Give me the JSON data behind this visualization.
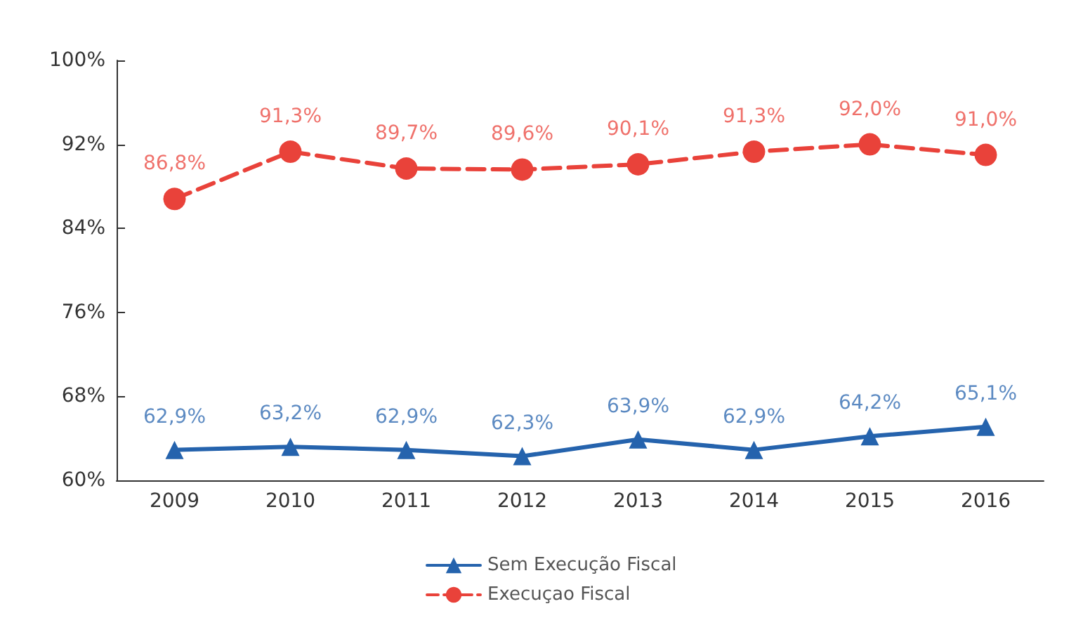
{
  "chart_data": {
    "type": "line",
    "categories": [
      "2009",
      "2010",
      "2011",
      "2012",
      "2013",
      "2014",
      "2015",
      "2016"
    ],
    "series": [
      {
        "name": "Sem Execução Fiscal",
        "color": "#2563ad",
        "marker": "triangle",
        "line_style": "solid",
        "values": [
          62.9,
          63.2,
          62.9,
          62.3,
          63.9,
          62.9,
          64.2,
          65.1
        ],
        "value_labels": [
          "62,9%",
          "63,2%",
          "62,9%",
          "62,3%",
          "63,9%",
          "62,9%",
          "64,2%",
          "65,1%"
        ]
      },
      {
        "name": "Execuçao Fiscal",
        "color": "#e9423a",
        "marker": "circle",
        "line_style": "dashed",
        "values": [
          86.8,
          91.3,
          89.7,
          89.6,
          90.1,
          91.3,
          92.0,
          91.0
        ],
        "value_labels": [
          "86,8%",
          "91,3%",
          "89,7%",
          "89,6%",
          "90,1%",
          "91,3%",
          "92,0%",
          "91,0%"
        ]
      }
    ],
    "ylim": [
      60,
      100
    ],
    "yticks": [
      {
        "value": 60,
        "label": "60%"
      },
      {
        "value": 68,
        "label": "68%"
      },
      {
        "value": 76,
        "label": "76%"
      },
      {
        "value": 84,
        "label": "84%"
      },
      {
        "value": 92,
        "label": "92%"
      },
      {
        "value": 100,
        "label": "100%"
      }
    ],
    "grid": false,
    "legend": "bottom"
  }
}
